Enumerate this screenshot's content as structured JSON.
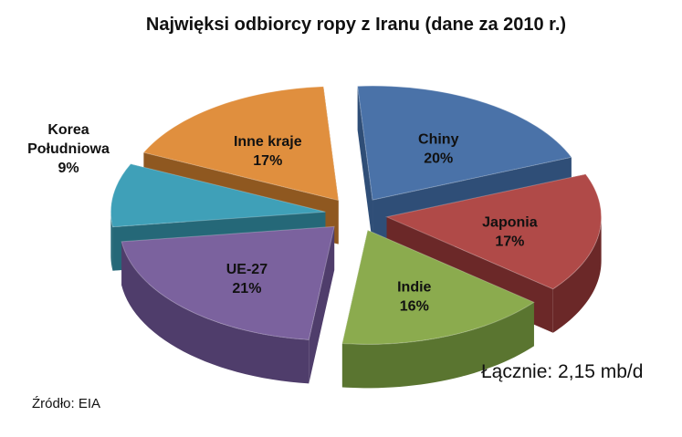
{
  "chart_data": {
    "type": "pie",
    "title": "Najwięksi odbiorcy ropy z Iranu (dane za 2010 r.)",
    "slices": [
      {
        "name": "Chiny",
        "value": 20,
        "label": "20%",
        "color": "#4a72a8",
        "side": "#2f4e77"
      },
      {
        "name": "Japonia",
        "value": 17,
        "label": "17%",
        "color": "#b04a48",
        "side": "#6b2828"
      },
      {
        "name": "Indie",
        "value": 16,
        "label": "16%",
        "color": "#8bab4e",
        "side": "#5a7530"
      },
      {
        "name": "UE-27",
        "value": 21,
        "label": "21%",
        "color": "#7b629e",
        "side": "#4f3d6b"
      },
      {
        "name": "Korea Południowa",
        "value": 9,
        "label": "9%",
        "color": "#3fa0b8",
        "side": "#256878"
      },
      {
        "name": "Inne kraje",
        "value": 17,
        "label": "17%",
        "color": "#e08f3e",
        "side": "#8f5820"
      }
    ],
    "annotations": {
      "total": "Łącznie: 2,15 mb/d",
      "source": "Źródło: EIA"
    }
  }
}
